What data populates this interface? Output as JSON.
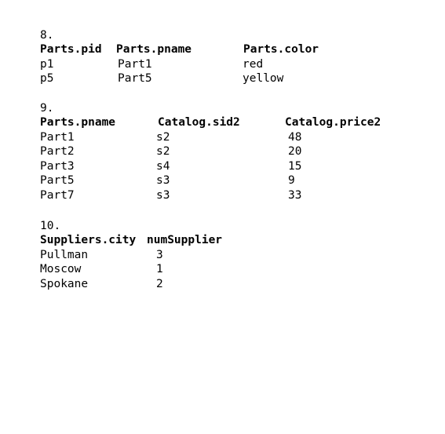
{
  "sections": [
    {
      "number": "8.",
      "headers": [
        "Parts.pid",
        "Parts.pname",
        "Parts.color"
      ],
      "rows": [
        [
          "p1",
          "Part1",
          "red"
        ],
        [
          "p5",
          "Part5",
          "yellow"
        ]
      ]
    },
    {
      "number": "9.",
      "headers": [
        "Parts.pname",
        "Catalog.sid2",
        "Catalog.price2"
      ],
      "rows": [
        [
          "Part1",
          "s2",
          "48"
        ],
        [
          "Part2",
          "s2",
          "20"
        ],
        [
          "Part3",
          "s4",
          "15"
        ],
        [
          "Part5",
          "s3",
          "9"
        ],
        [
          "Part7",
          "s3",
          "33"
        ]
      ]
    },
    {
      "number": "10.",
      "headers": [
        "Suppliers.city",
        "numSupplier"
      ],
      "rows": [
        [
          "Pullman",
          "3"
        ],
        [
          "Moscow",
          "1"
        ],
        [
          "Spokane",
          "2"
        ]
      ]
    }
  ]
}
